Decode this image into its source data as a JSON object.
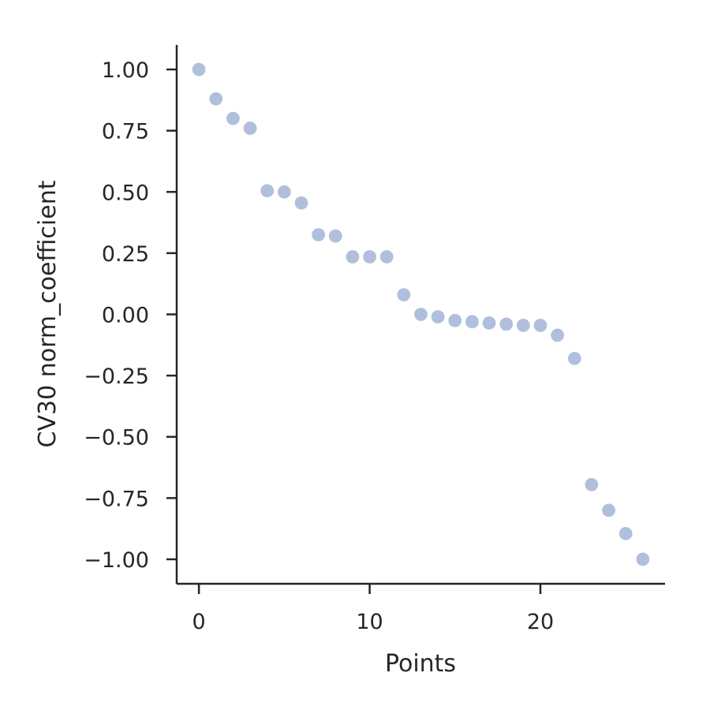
{
  "chart_data": {
    "type": "scatter",
    "xlabel": "Points",
    "ylabel": "CV30 norm_coefficient",
    "xlim": [
      -1.3,
      27.3
    ],
    "ylim": [
      -1.1,
      1.1
    ],
    "xticks": [
      0,
      10,
      20
    ],
    "xtick_labels": [
      "0",
      "10",
      "20"
    ],
    "yticks": [
      1.0,
      0.75,
      0.5,
      0.25,
      0.0,
      -0.25,
      -0.5,
      -0.75,
      -1.0
    ],
    "ytick_labels": [
      "1.00",
      "0.75",
      "0.50",
      "0.25",
      "0.00",
      "−0.25",
      "−0.50",
      "−0.75",
      "−1.00"
    ],
    "grid": false,
    "marker_color": "#b0c0dc",
    "series": [
      {
        "x": [
          0,
          1,
          2,
          3,
          4,
          5,
          6,
          7,
          8,
          9,
          10,
          11,
          12,
          13,
          14,
          15,
          16,
          17,
          18,
          19,
          20,
          21,
          22,
          23,
          24,
          25,
          26
        ],
        "y": [
          1.0,
          0.88,
          0.8,
          0.76,
          0.505,
          0.5,
          0.455,
          0.325,
          0.32,
          0.235,
          0.235,
          0.235,
          0.08,
          0.0,
          -0.01,
          -0.025,
          -0.03,
          -0.035,
          -0.04,
          -0.045,
          -0.045,
          -0.085,
          -0.18,
          -0.695,
          -0.8,
          -0.895,
          -1.0
        ]
      }
    ]
  }
}
